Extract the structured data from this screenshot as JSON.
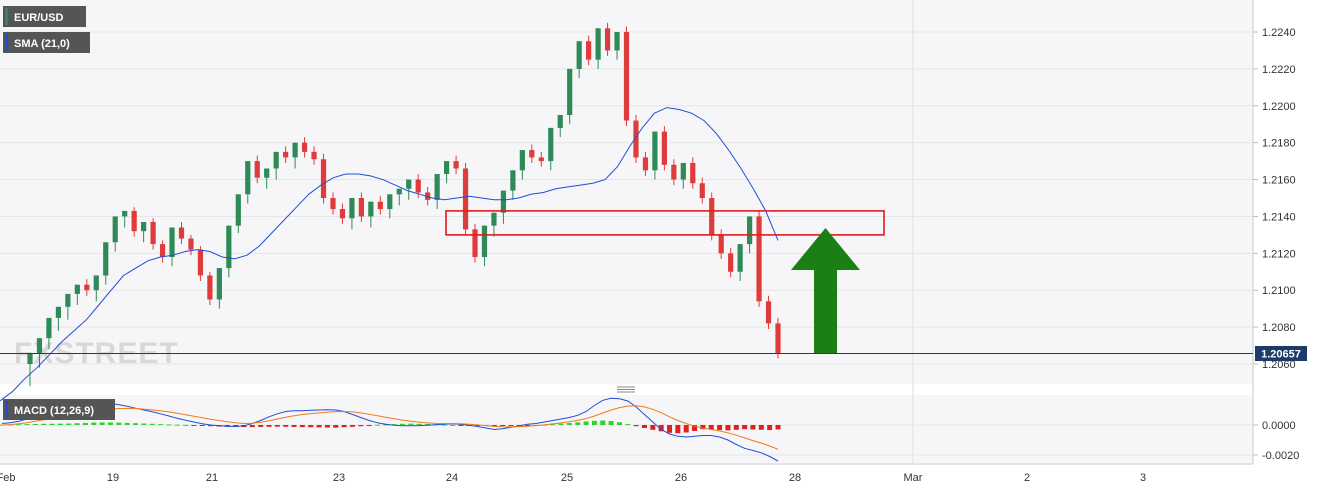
{
  "chart_data": [
    {
      "type": "candlestick",
      "symbol": "EUR/USD",
      "indicator": "SMA (21,0)",
      "y_ticks": [
        "1.2240",
        "1.2220",
        "1.2200",
        "1.2180",
        "1.2160",
        "1.2140",
        "1.2120",
        "1.2100",
        "1.2080",
        "1.2060"
      ],
      "ylim": [
        1.2053,
        1.225
      ],
      "x_ticks": [
        "Feb",
        "19",
        "21",
        "23",
        "24",
        "25",
        "26",
        "28",
        "Mar",
        "2",
        "3"
      ],
      "current_price": 1.20657,
      "current_price_label": "1.20657",
      "watermark": "FXSTREET",
      "colors": {
        "up": "#2e8b57",
        "down": "#e03b3b",
        "sma": "#1f4fd6",
        "box": "#e31b1b",
        "arrow": "#1a7f14",
        "price_line": "#1e3a6a"
      },
      "resistance_zone": [
        1.213,
        1.2143
      ],
      "annotation": "green-up-arrow",
      "candles": [
        [
          1.206,
          1.2066,
          1.205,
          1.2048
        ],
        [
          1.2066,
          1.2074,
          1.206,
          1.2058
        ],
        [
          1.2074,
          1.2085,
          1.207,
          1.2068
        ],
        [
          1.2085,
          1.2091,
          1.208,
          1.2078
        ],
        [
          1.2091,
          1.2098,
          1.2086,
          1.2084
        ],
        [
          1.2098,
          1.2103,
          1.2094,
          1.2092
        ],
        [
          1.2103,
          1.21,
          1.2106,
          1.2097
        ],
        [
          1.21,
          1.2108,
          1.2096,
          1.2094
        ],
        [
          1.2108,
          1.2126,
          1.2105,
          1.2103
        ],
        [
          1.2126,
          1.214,
          1.2123,
          1.2121
        ],
        [
          1.214,
          1.2143,
          1.2136,
          1.2134
        ],
        [
          1.2143,
          1.2132,
          1.2145,
          1.2129
        ],
        [
          1.2132,
          1.2137,
          1.2128,
          1.2126
        ],
        [
          1.2137,
          1.2125,
          1.2139,
          1.2122
        ],
        [
          1.2125,
          1.2118,
          1.2127,
          1.2115
        ],
        [
          1.2118,
          1.2134,
          1.2115,
          1.2113
        ],
        [
          1.2134,
          1.2128,
          1.2137,
          1.2125
        ],
        [
          1.2128,
          1.2122,
          1.213,
          1.2119
        ],
        [
          1.2122,
          1.2108,
          1.2124,
          1.2105
        ],
        [
          1.2108,
          1.2095,
          1.211,
          1.2092
        ],
        [
          1.2095,
          1.2112,
          1.2093,
          1.209
        ],
        [
          1.2112,
          1.2135,
          1.2109,
          1.2107
        ],
        [
          1.2135,
          1.2152,
          1.2133,
          1.2131
        ],
        [
          1.2152,
          1.217,
          1.2149,
          1.2147
        ],
        [
          1.217,
          1.2161,
          1.2173,
          1.2158
        ],
        [
          1.2161,
          1.2166,
          1.2157,
          1.2155
        ],
        [
          1.2166,
          1.2175,
          1.2162,
          1.216
        ],
        [
          1.2175,
          1.2172,
          1.2178,
          1.2169
        ],
        [
          1.2172,
          1.218,
          1.2168,
          1.2166
        ],
        [
          1.218,
          1.2175,
          1.2183,
          1.2172
        ],
        [
          1.2175,
          1.2171,
          1.2178,
          1.2168
        ],
        [
          1.2171,
          1.215,
          1.2174,
          1.2147
        ],
        [
          1.215,
          1.2144,
          1.2153,
          1.2141
        ],
        [
          1.2144,
          1.2139,
          1.2147,
          1.2136
        ],
        [
          1.2139,
          1.215,
          1.2135,
          1.2133
        ],
        [
          1.215,
          1.214,
          1.2153,
          1.2137
        ],
        [
          1.214,
          1.2148,
          1.2136,
          1.2134
        ],
        [
          1.2148,
          1.2144,
          1.2151,
          1.2141
        ],
        [
          1.2144,
          1.2152,
          1.2141,
          1.2139
        ],
        [
          1.2152,
          1.2155,
          1.2148,
          1.2146
        ],
        [
          1.2155,
          1.216,
          1.2151,
          1.2149
        ],
        [
          1.216,
          1.2153,
          1.2163,
          1.215
        ],
        [
          1.2153,
          1.2149,
          1.2156,
          1.2146
        ],
        [
          1.2149,
          1.2163,
          1.2146,
          1.2144
        ],
        [
          1.2163,
          1.217,
          1.216,
          1.2158
        ],
        [
          1.217,
          1.2166,
          1.2173,
          1.2163
        ],
        [
          1.2166,
          1.2133,
          1.2169,
          1.213
        ],
        [
          1.2133,
          1.2118,
          1.2136,
          1.2115
        ],
        [
          1.2118,
          1.2135,
          1.2115,
          1.2113
        ],
        [
          1.2135,
          1.2142,
          1.2131,
          1.2129
        ],
        [
          1.2142,
          1.2154,
          1.2138,
          1.2136
        ],
        [
          1.2154,
          1.2165,
          1.2151,
          1.2149
        ],
        [
          1.2165,
          1.2176,
          1.2162,
          1.216
        ],
        [
          1.2176,
          1.2172,
          1.2179,
          1.2169
        ],
        [
          1.2172,
          1.217,
          1.2175,
          1.2167
        ],
        [
          1.217,
          1.2188,
          1.2167,
          1.2165
        ],
        [
          1.2188,
          1.2195,
          1.2185,
          1.2183
        ],
        [
          1.2195,
          1.222,
          1.2192,
          1.219
        ],
        [
          1.222,
          1.2235,
          1.2217,
          1.2215
        ],
        [
          1.2235,
          1.2225,
          1.2238,
          1.2222
        ],
        [
          1.2225,
          1.2242,
          1.2222,
          1.222
        ],
        [
          1.2242,
          1.223,
          1.2245,
          1.2227
        ],
        [
          1.223,
          1.224,
          1.2227,
          1.2225
        ],
        [
          1.224,
          1.2192,
          1.2243,
          1.2189
        ],
        [
          1.2192,
          1.2172,
          1.2195,
          1.2169
        ],
        [
          1.2172,
          1.2165,
          1.2175,
          1.2162
        ],
        [
          1.2165,
          1.2186,
          1.2162,
          1.216
        ],
        [
          1.2186,
          1.2168,
          1.2189,
          1.2165
        ],
        [
          1.2168,
          1.216,
          1.2171,
          1.2157
        ],
        [
          1.216,
          1.2169,
          1.2157,
          1.2155
        ],
        [
          1.2169,
          1.2158,
          1.2172,
          1.2155
        ],
        [
          1.2158,
          1.215,
          1.2161,
          1.2147
        ],
        [
          1.215,
          1.213,
          1.2153,
          1.2127
        ],
        [
          1.213,
          1.212,
          1.2133,
          1.2117
        ],
        [
          1.212,
          1.211,
          1.2123,
          1.2107
        ],
        [
          1.211,
          1.2125,
          1.2107,
          1.2105
        ],
        [
          1.2125,
          1.214,
          1.2122,
          1.212
        ],
        [
          1.214,
          1.2094,
          1.2143,
          1.2091
        ],
        [
          1.2094,
          1.2082,
          1.2097,
          1.2079
        ],
        [
          1.2082,
          1.2066,
          1.2085,
          1.2063
        ]
      ]
    },
    {
      "type": "macd",
      "label": "MACD (12,26,9)",
      "y_ticks": [
        "0.0000",
        "-0.0020"
      ],
      "ylim": [
        -0.0024,
        0.0018
      ],
      "colors": {
        "hist_up": "#2fd32f",
        "hist_down": "#e02020",
        "macd": "#1f4fd6",
        "signal": "#f07a1a"
      },
      "histogram": [
        3e-05,
        4e-05,
        5e-05,
        6e-05,
        7e-05,
        8e-05,
        8e-05,
        9e-05,
        0.0001,
        0.00012,
        0.00014,
        0.00016,
        0.00017,
        0.00017,
        0.00016,
        0.00014,
        0.00012,
        0.0001,
        8e-05,
        6e-05,
        4e-05,
        2e-05,
        1e-05,
        -2e-05,
        -5e-05,
        -8e-05,
        -0.0001,
        -0.00012,
        -0.00013,
        -0.00014,
        -0.00014,
        -0.00013,
        -0.00012,
        -0.00011,
        -0.00012,
        -0.00013,
        -0.00014,
        -0.00015,
        -0.00016,
        -0.00017,
        -0.00018,
        -0.00015,
        -0.00012,
        -8e-05,
        -5e-05,
        2e-05,
        4e-05,
        6e-05,
        8e-05,
        9e-05,
        8e-05,
        7e-05,
        5e-05,
        3e-05,
        1e-05,
        -1e-05,
        -2e-05,
        -3e-05,
        -4e-05,
        -5e-05,
        -6e-05,
        -7e-05,
        -6e-05,
        -4e-05,
        -2e-05,
        2e-05,
        5e-05,
        9e-05,
        0.00013,
        0.00018,
        0.00024,
        0.00028,
        0.0003,
        0.00026,
        0.00018,
        6e-05,
        -8e-05,
        -0.0002,
        -0.00032,
        -0.00042,
        -0.00052,
        -0.00055,
        -0.0005,
        -0.0004,
        -0.00028,
        -0.0003,
        -0.00034,
        -0.00036,
        -0.00032,
        -0.00028,
        -0.0003,
        -0.00032,
        -0.00034,
        -0.0003
      ],
      "macd": [
        0.0001,
        0.00015,
        0.00025,
        0.0004,
        0.00055,
        0.00065,
        0.0007,
        0.00075,
        0.00085,
        0.00105,
        0.00125,
        0.0014,
        0.00148,
        0.00145,
        0.00135,
        0.00125,
        0.00112,
        0.001,
        0.00088,
        0.00075,
        0.0006,
        0.00045,
        0.00032,
        0.0002,
        8e-05,
        0.0,
        -5e-05,
        -8e-05,
        -0.0001,
        -5e-05,
        0.0001,
        0.0003,
        0.00055,
        0.00075,
        0.0009,
        0.00095,
        0.00095,
        0.00098,
        0.001,
        0.00102,
        0.001,
        0.0009,
        0.0007,
        0.0005,
        0.0003,
        0.00015,
        5e-05,
        -2e-05,
        -5e-05,
        -5e-05,
        -4e-05,
        -2e-05,
        2e-05,
        6e-05,
        8e-05,
        4e-05,
        -3e-05,
        -0.0001,
        -0.0002,
        -0.0003,
        -0.00025,
        -0.00015,
        -5e-05,
        5e-05,
        0.0001,
        0.0002,
        0.0003,
        0.0004,
        0.0005,
        0.00065,
        0.0009,
        0.0013,
        0.00165,
        0.00178,
        0.00175,
        0.0016,
        0.0012,
        0.0007,
        0.0002,
        -0.0003,
        -0.0006,
        -0.00075,
        -0.0008,
        -0.00075,
        -0.0007,
        -0.0007,
        -0.0008,
        -0.001,
        -0.0013,
        -0.00155,
        -0.0017,
        -0.00185,
        -0.0021,
        -0.0024
      ],
      "signal": [
        0.0,
        3e-05,
        8e-05,
        0.00015,
        0.00025,
        0.00035,
        0.00045,
        0.00052,
        0.0006,
        0.00068,
        0.00078,
        0.00088,
        0.00098,
        0.00105,
        0.0011,
        0.00111,
        0.0011,
        0.00106,
        0.00101,
        0.00095,
        0.00087,
        0.00078,
        0.00068,
        0.00058,
        0.00048,
        0.00038,
        0.0003,
        0.00022,
        0.00015,
        0.0001,
        0.00012,
        0.00018,
        0.00028,
        0.0004,
        0.00052,
        0.00062,
        0.0007,
        0.00076,
        0.00081,
        0.00086,
        0.00089,
        0.0009,
        0.00087,
        0.00081,
        0.00072,
        0.00062,
        0.00052,
        0.00042,
        0.00033,
        0.00025,
        0.00019,
        0.00014,
        0.00011,
        0.0001,
        9e-05,
        8e-05,
        5e-05,
        1e-05,
        -4e-05,
        -9e-05,
        -0.00012,
        -0.00013,
        -0.00011,
        -8e-05,
        -4e-05,
        1e-05,
        7e-05,
        0.00014,
        0.00022,
        0.00031,
        0.00043,
        0.0006,
        0.0008,
        0.001,
        0.00116,
        0.00126,
        0.00128,
        0.00121,
        0.00105,
        0.00082,
        0.00055,
        0.0003,
        0.0001,
        -8e-05,
        -0.00021,
        -0.0003,
        -0.0004,
        -0.00052,
        -0.00068,
        -0.00086,
        -0.00104,
        -0.00121,
        -0.0014,
        -0.00162
      ]
    }
  ],
  "sma": [
    1.204,
    1.2045,
    1.2052,
    1.2058,
    1.2065,
    1.2072,
    1.2078,
    1.2084,
    1.2092,
    1.21,
    1.2108,
    1.2112,
    1.2116,
    1.2118,
    1.2119,
    1.2121,
    1.2122,
    1.2121,
    1.2118,
    1.2117,
    1.2119,
    1.2124,
    1.2131,
    1.2138,
    1.2145,
    1.2152,
    1.2157,
    1.2161,
    1.2163,
    1.2163,
    1.2162,
    1.216,
    1.2157,
    1.2154,
    1.2152,
    1.215,
    1.2149,
    1.215,
    1.2151,
    1.215,
    1.2149,
    1.2149,
    1.215,
    1.2152,
    1.2153,
    1.2155,
    1.2156,
    1.2157,
    1.2158,
    1.216,
    1.2167,
    1.2178,
    1.2188,
    1.2196,
    1.2199,
    1.2198,
    1.2196,
    1.2192,
    1.2185,
    1.2176,
    1.2166,
    1.2155,
    1.2143,
    1.2127
  ]
}
